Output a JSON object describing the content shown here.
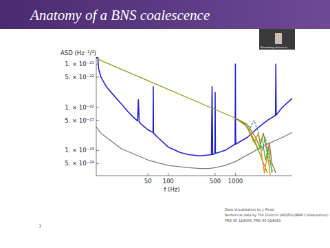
{
  "slide": {
    "title": "Anatomy of a BNS coalescence",
    "number": "7",
    "webcam_label": "Bloomberg Lecture H...",
    "credits": [
      "Data Visualization by J. Read",
      "Numerical data by Tim Dietrich (AEI/FSU/BAM Collaboration)",
      "PRD 95 124006, PRD 95 024029"
    ]
  },
  "chart_data": {
    "type": "line",
    "x_label": "f (Hz)",
    "y_label": "ASD (Hz⁻¹/²)",
    "log": true,
    "grid": false,
    "xlim": [
      8.5,
      7000
    ],
    "ylim": [
      2.6e-24,
      1.45e-21
    ],
    "xticks": [
      50,
      100,
      500,
      1000
    ],
    "yticks": [
      {
        "value": 1e-21,
        "label": "1. × 10⁻²¹"
      },
      {
        "value": 5e-22,
        "label": "5. × 10⁻²²"
      },
      {
        "value": 1e-22,
        "label": "1. × 10⁻²²"
      },
      {
        "value": 5e-23,
        "label": "5. × 10⁻²³"
      },
      {
        "value": 1e-23,
        "label": "1. × 10⁻²³"
      },
      {
        "value": 5e-24,
        "label": "5. × 10⁻²⁴"
      }
    ],
    "series": [
      {
        "color": "#7a7a7a",
        "line_style": "solid",
        "x": [
          8.5,
          10,
          20,
          50,
          100,
          200,
          300,
          400,
          500,
          700,
          1000,
          2000,
          3000,
          5000,
          7000
        ],
        "values": [
          3.5e-23,
          2.5e-23,
          1.1e-23,
          6e-24,
          4.5e-24,
          4e-24,
          3.8e-24,
          3.8e-24,
          4e-24,
          4.5e-24,
          5.5e-24,
          1e-23,
          1.4e-23,
          2e-23,
          2.6e-23
        ]
      },
      {
        "color": "#2020d0",
        "line_style": "solid",
        "x": [
          8.5,
          9,
          9.2,
          9.4,
          10,
          12,
          15,
          20,
          25,
          30,
          35,
          36,
          37,
          40,
          50,
          59.5,
          60,
          60.5,
          70,
          100,
          150,
          200,
          300,
          440,
          450,
          460,
          495,
          500,
          505,
          700,
          990,
          1000,
          1010,
          1500,
          2000,
          2500,
          3000,
          3950,
          4000,
          4050,
          5000,
          6000,
          7000
        ],
        "values": [
          1.4e-21,
          1.45e-21,
          8e-22,
          7e-22,
          5e-22,
          3e-22,
          2e-22,
          1.2e-22,
          8e-23,
          6e-23,
          4.8e-23,
          1.5e-22,
          4.6e-23,
          4e-23,
          3e-23,
          2.6e-23,
          3e-22,
          2.5e-23,
          2e-23,
          1.2e-23,
          9e-24,
          8e-24,
          7.5e-24,
          8e-24,
          3e-22,
          8e-24,
          8.5e-24,
          2.2e-22,
          8.5e-24,
          1e-23,
          1.4e-23,
          1e-21,
          1.4e-23,
          2e-23,
          3e-23,
          4e-23,
          5e-23,
          6.5e-23,
          1e-21,
          6.6e-23,
          1e-22,
          1.3e-22,
          1.6e-22
        ]
      },
      {
        "color": "#9a9a20",
        "line_style": "solid",
        "x": [
          8.5,
          1000,
          1300,
          1600,
          2000,
          2500,
          3000
        ],
        "values": [
          1.35e-21,
          5.6e-23,
          4.5e-23,
          3e-23,
          1.5e-23,
          6e-24,
          3e-24
        ]
      },
      {
        "color": "#b5651d",
        "line_style": "solid",
        "x": [
          1000,
          1500,
          2000,
          2300,
          2600,
          2800,
          3000,
          3200,
          3500,
          4000
        ],
        "values": [
          5.6e-23,
          4e-23,
          2e-23,
          1.2e-23,
          2.5e-23,
          1.5e-23,
          8e-24,
          1.5e-23,
          5e-24,
          3e-24
        ]
      },
      {
        "color": "#55b030",
        "line_style": "solid",
        "x": [
          1000,
          1400,
          1800,
          2200,
          2500,
          2800,
          3100,
          3500
        ],
        "values": [
          5.6e-23,
          4e-23,
          2e-23,
          1e-23,
          2e-23,
          6e-24,
          1.2e-23,
          3e-24
        ]
      },
      {
        "color": "#e08a00",
        "line_style": "solid",
        "x": [
          1000,
          1500,
          1900,
          2200,
          2400,
          2700,
          3000,
          3300
        ],
        "values": [
          5.6e-23,
          3.5e-23,
          1.5e-23,
          2.5e-23,
          1e-23,
          3e-24,
          8e-24,
          2.7e-24
        ]
      },
      {
        "color": "#2aa07a",
        "line_style": "dashed",
        "x": [
          1000,
          1300,
          1600,
          1900,
          2200,
          2500,
          2800,
          3200,
          3600
        ],
        "values": [
          5.6e-23,
          4.5e-23,
          3e-23,
          5e-23,
          2.5e-23,
          1e-23,
          2e-23,
          6e-24,
          3e-24
        ]
      }
    ]
  }
}
